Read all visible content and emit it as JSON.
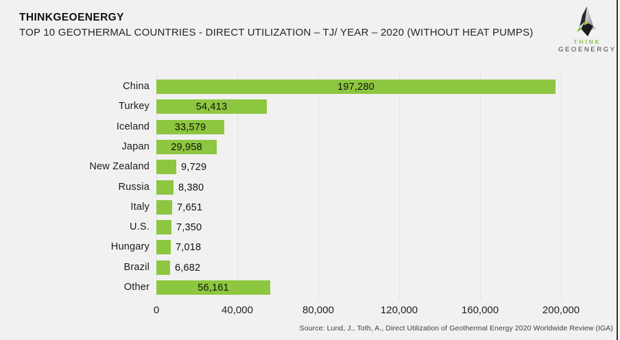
{
  "header": {
    "title": "THINKGEOENERGY",
    "subtitle": "TOP 10 GEOTHERMAL COUNTRIES - DIRECT UTILIZATION – TJ/ YEAR – 2020 (WITHOUT HEAT PUMPS)"
  },
  "logo": {
    "line1": "THINK",
    "line2": "GEOENERGY",
    "accent_color": "#8dc63f",
    "dark_color": "#3a3a3a"
  },
  "chart_data": {
    "type": "bar",
    "orientation": "horizontal",
    "title": "",
    "xlabel": "",
    "ylabel": "",
    "categories": [
      "China",
      "Turkey",
      "Iceland",
      "Japan",
      "New Zealand",
      "Russia",
      "Italy",
      "U.S.",
      "Hungary",
      "Brazil",
      "Other"
    ],
    "values": [
      197280,
      54413,
      33579,
      29958,
      9729,
      8380,
      7651,
      7350,
      7018,
      6682,
      56161
    ],
    "value_labels": [
      "197,280",
      "54,413",
      "33,579",
      "29,958",
      "9,729",
      "8,380",
      "7,651",
      "7,350",
      "7,018",
      "6,682",
      "56,161"
    ],
    "xlim": [
      0,
      200000
    ],
    "x_ticks": [
      0,
      40000,
      80000,
      120000,
      160000,
      200000
    ],
    "x_tick_labels": [
      "0",
      "40,000",
      "80,000",
      "120,000",
      "160,000",
      "200,000"
    ],
    "bar_color": "#8dc63f",
    "grid": true,
    "legend": "none",
    "label_inside_threshold": 25000
  },
  "footer": {
    "source": "Source: Lund, J., Toth, A., Direct Utilization of Geothermal Energy 2020 Worldwide Review (IGA)"
  }
}
